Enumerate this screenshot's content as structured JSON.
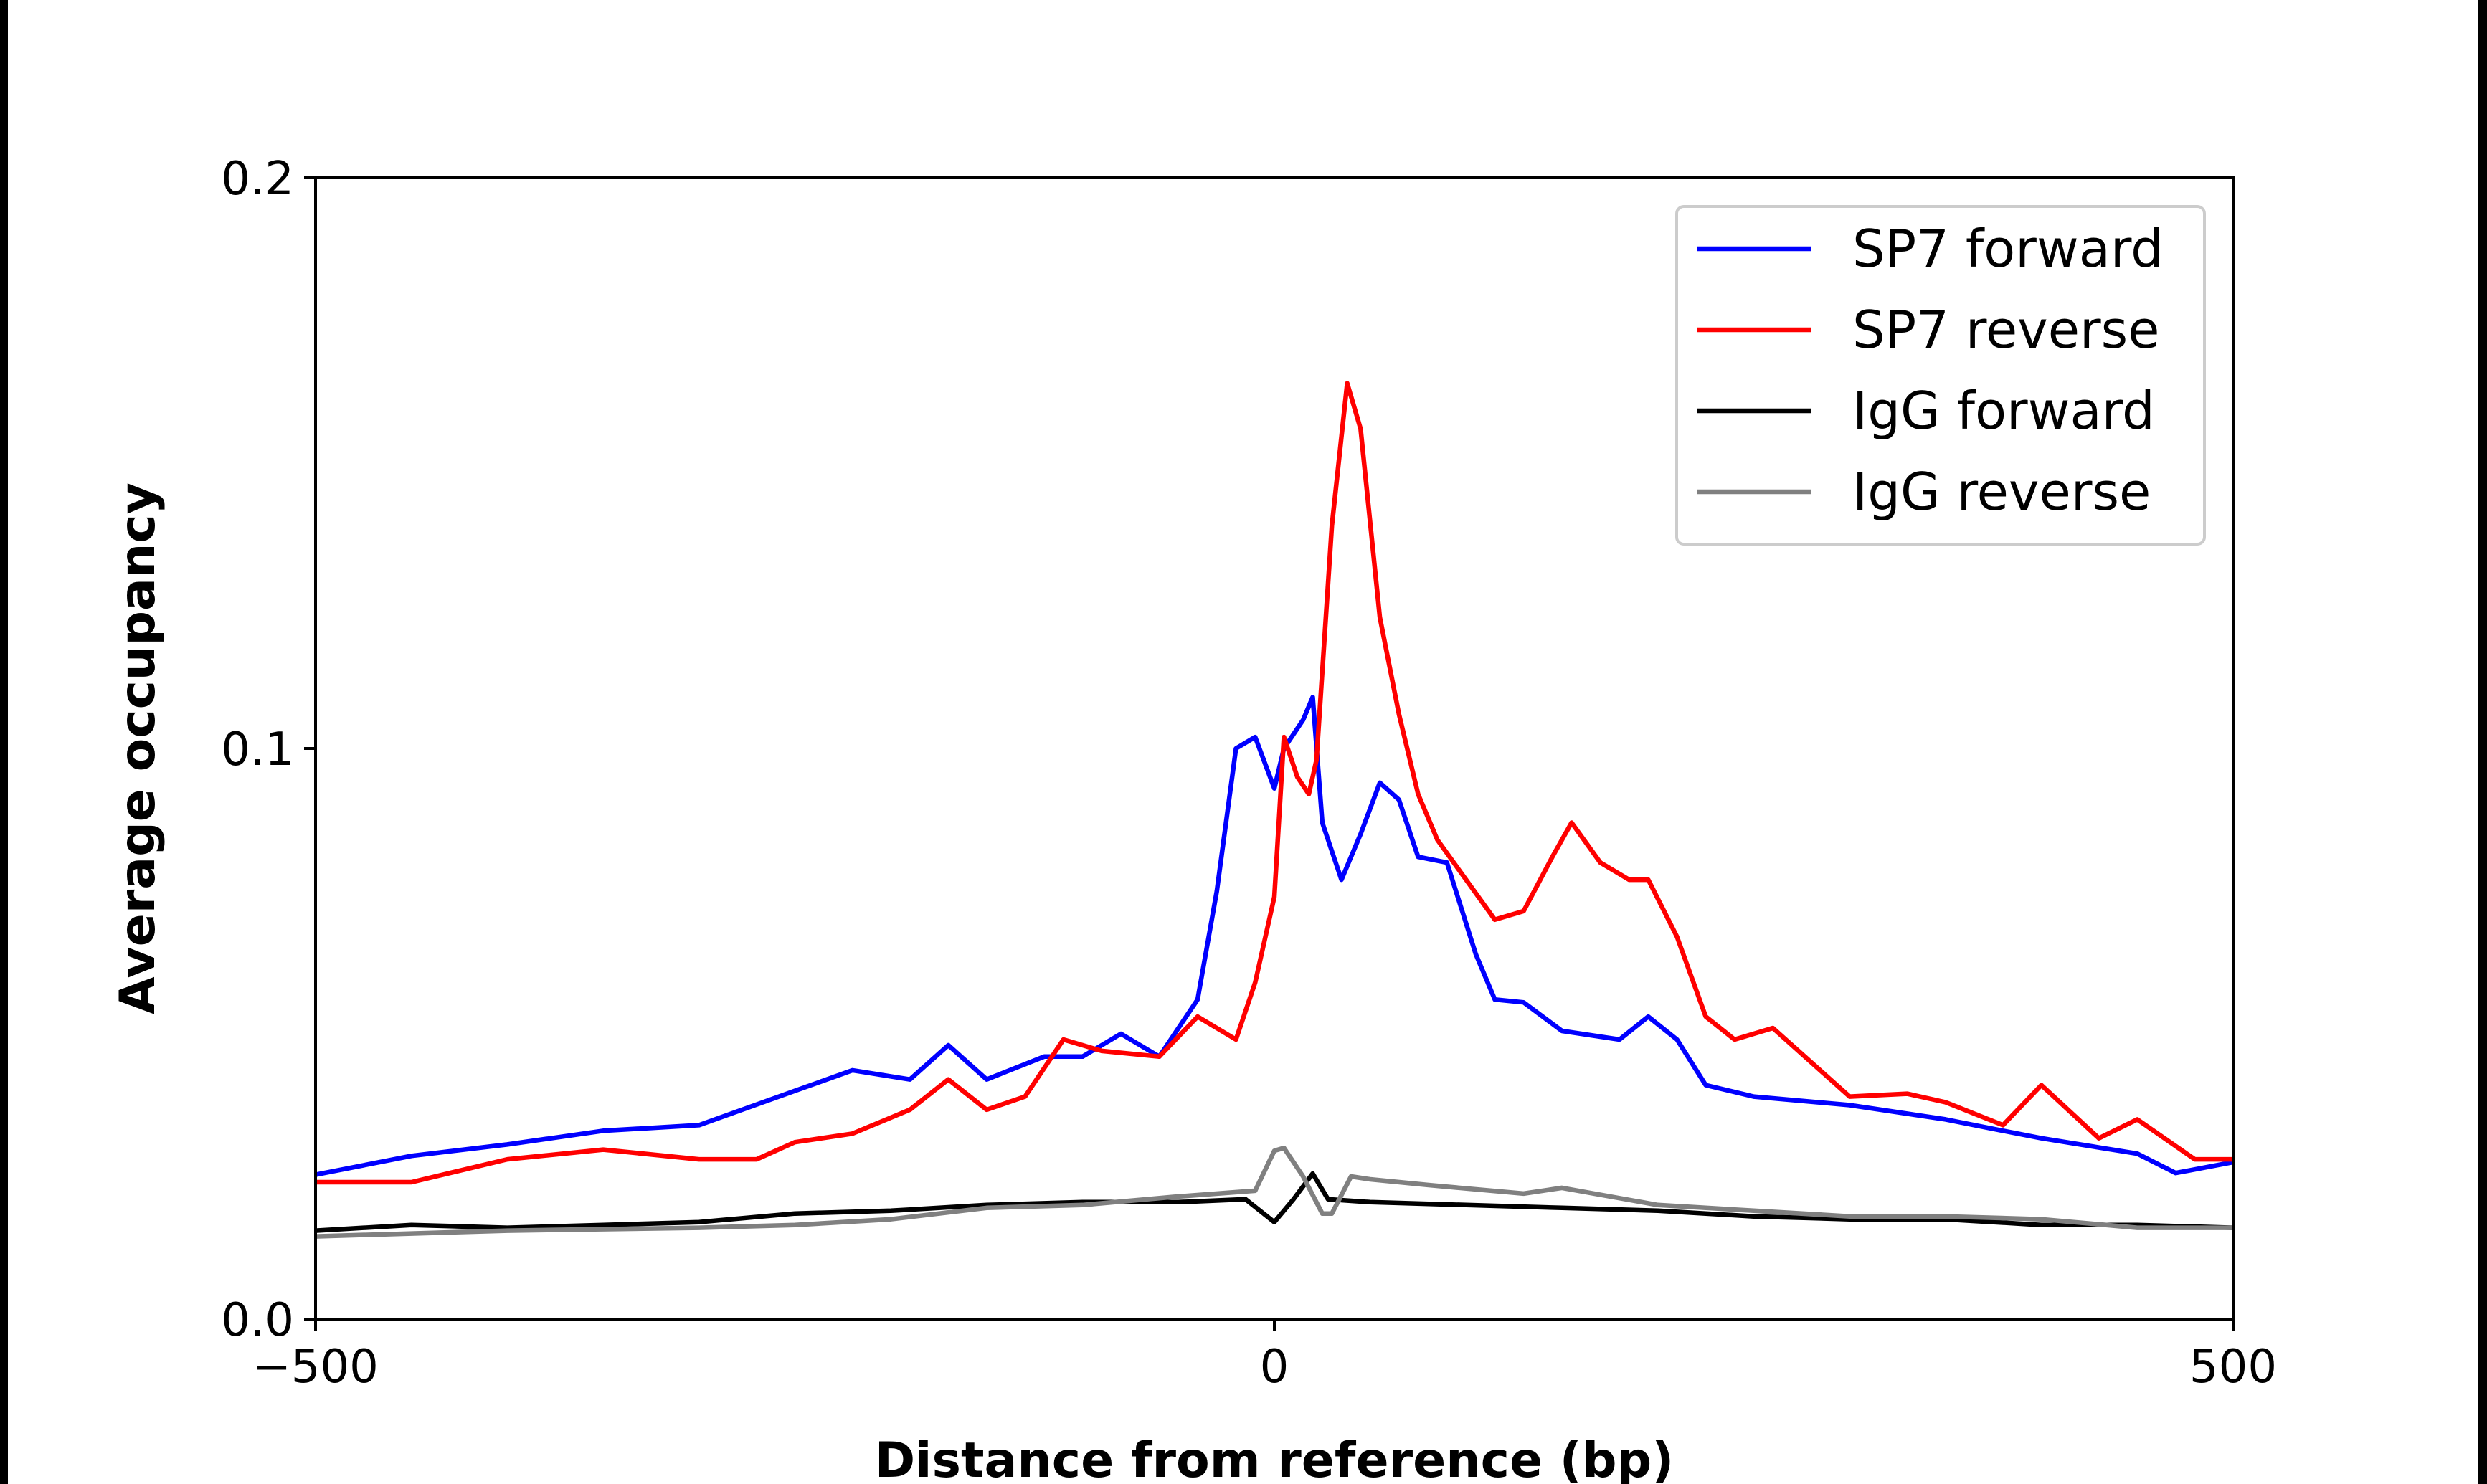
{
  "chart_data": {
    "type": "line",
    "title": "",
    "xlabel": "Distance from reference (bp)",
    "ylabel": "Average occupancy",
    "xlim": [
      -500,
      500
    ],
    "ylim": [
      0,
      0.2
    ],
    "xticks": [
      -500,
      0,
      500
    ],
    "xtick_labels": [
      "−500",
      "0",
      "500"
    ],
    "yticks": [
      0,
      0.1,
      0.2
    ],
    "ytick_labels": [
      "0.0",
      "0.1",
      "0.2"
    ],
    "grid": false,
    "legend_position": "top-right",
    "series": [
      {
        "name": "SP7 forward",
        "color": "#0000ff",
        "x": [
          -500,
          -450,
          -400,
          -350,
          -300,
          -250,
          -220,
          -190,
          -170,
          -150,
          -120,
          -100,
          -80,
          -60,
          -40,
          -30,
          -20,
          -10,
          0,
          5,
          15,
          20,
          25,
          35,
          45,
          55,
          65,
          75,
          90,
          105,
          115,
          130,
          150,
          180,
          195,
          210,
          225,
          250,
          300,
          350,
          380,
          400,
          450,
          470,
          500
        ],
        "y": [
          0.0253,
          0.0286,
          0.0306,
          0.033,
          0.034,
          0.04,
          0.0436,
          0.042,
          0.048,
          0.042,
          0.046,
          0.046,
          0.05,
          0.046,
          0.056,
          0.075,
          0.1,
          0.102,
          0.093,
          0.1,
          0.105,
          0.109,
          0.087,
          0.077,
          0.085,
          0.094,
          0.091,
          0.081,
          0.08,
          0.064,
          0.056,
          0.0555,
          0.0505,
          0.049,
          0.053,
          0.049,
          0.041,
          0.039,
          0.0375,
          0.035,
          0.033,
          0.0317,
          0.029,
          0.0256,
          0.0275
        ]
      },
      {
        "name": "SP7 reverse",
        "color": "#ff0000",
        "x": [
          -500,
          -450,
          -400,
          -350,
          -300,
          -270,
          -250,
          -220,
          -190,
          -170,
          -150,
          -130,
          -110,
          -90,
          -60,
          -40,
          -20,
          -10,
          0,
          5,
          12,
          18,
          22,
          30,
          38,
          45,
          55,
          65,
          75,
          85,
          100,
          115,
          130,
          145,
          155,
          170,
          185,
          195,
          210,
          225,
          240,
          260,
          280,
          300,
          330,
          350,
          380,
          400,
          430,
          450,
          480,
          500
        ],
        "y": [
          0.024,
          0.024,
          0.028,
          0.0297,
          0.028,
          0.028,
          0.031,
          0.0325,
          0.0367,
          0.042,
          0.0367,
          0.039,
          0.049,
          0.047,
          0.046,
          0.053,
          0.049,
          0.059,
          0.074,
          0.102,
          0.095,
          0.092,
          0.098,
          0.139,
          0.164,
          0.156,
          0.123,
          0.106,
          0.092,
          0.084,
          0.077,
          0.07,
          0.0715,
          0.081,
          0.087,
          0.08,
          0.077,
          0.077,
          0.067,
          0.053,
          0.049,
          0.051,
          0.045,
          0.039,
          0.0395,
          0.038,
          0.034,
          0.041,
          0.0317,
          0.035,
          0.028,
          0.028
        ]
      },
      {
        "name": "IgG forward",
        "color": "#000000",
        "x": [
          -500,
          -450,
          -400,
          -350,
          -300,
          -250,
          -200,
          -150,
          -100,
          -50,
          -15,
          0,
          10,
          20,
          28,
          50,
          100,
          150,
          200,
          250,
          300,
          350,
          400,
          450,
          500
        ],
        "y": [
          0.0155,
          0.0165,
          0.016,
          0.0165,
          0.017,
          0.0185,
          0.019,
          0.02,
          0.0205,
          0.0205,
          0.021,
          0.017,
          0.021,
          0.0255,
          0.021,
          0.0205,
          0.02,
          0.0195,
          0.019,
          0.018,
          0.0175,
          0.0175,
          0.0165,
          0.0165,
          0.016
        ]
      },
      {
        "name": "IgG reverse",
        "color": "#808080",
        "x": [
          -500,
          -450,
          -400,
          -300,
          -250,
          -200,
          -150,
          -100,
          -50,
          -10,
          0,
          5,
          15,
          25,
          30,
          40,
          50,
          80,
          130,
          150,
          200,
          250,
          300,
          350,
          400,
          450,
          500
        ],
        "y": [
          0.0145,
          0.015,
          0.0155,
          0.016,
          0.0165,
          0.0175,
          0.0195,
          0.02,
          0.0215,
          0.0225,
          0.0295,
          0.03,
          0.025,
          0.0185,
          0.0185,
          0.025,
          0.0245,
          0.0235,
          0.022,
          0.023,
          0.02,
          0.019,
          0.018,
          0.018,
          0.0175,
          0.016,
          0.016
        ]
      }
    ]
  }
}
